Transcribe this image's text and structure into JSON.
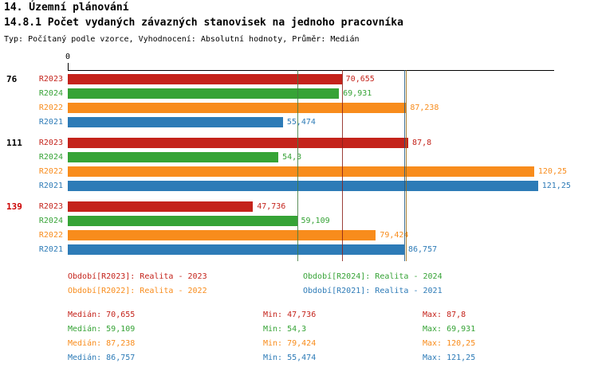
{
  "header": {
    "title": "14. Územní plánování",
    "subtitle": "14.8.1 Počet vydaných závazných stanovisek na jednoho pracovníka",
    "meta": "Typ: Počítaný podle vzorce, Vyhodnocení: Absolutní hodnoty, Průměr: Medián"
  },
  "colors": {
    "r2023": "#c4231b",
    "r2024": "#36a336",
    "r2022": "#f88c1c",
    "r2021": "#2d7bb7",
    "group_flag": "#cc0000",
    "axis": "#000000"
  },
  "chart_data": {
    "type": "bar",
    "orientation": "horizontal",
    "title": "14.8.1 Počet vydaných závazných stanovisek na jednoho pracovníka",
    "xlabel": "",
    "ylabel": "",
    "axis": {
      "min": 0,
      "max": 125,
      "tick_label": "0"
    },
    "series_order": [
      "R2023",
      "R2024",
      "R2022",
      "R2021"
    ],
    "groups": [
      {
        "label": "76",
        "label_color": "#000000",
        "bars": [
          {
            "series": "R2023",
            "value": 70.655,
            "display": "70,655"
          },
          {
            "series": "R2024",
            "value": 69.931,
            "display": "69,931"
          },
          {
            "series": "R2022",
            "value": 87.238,
            "display": "87,238"
          },
          {
            "series": "R2021",
            "value": 55.474,
            "display": "55,474"
          }
        ]
      },
      {
        "label": "111",
        "label_color": "#000000",
        "bars": [
          {
            "series": "R2023",
            "value": 87.8,
            "display": "87,8"
          },
          {
            "series": "R2024",
            "value": 54.3,
            "display": "54,3"
          },
          {
            "series": "R2022",
            "value": 120.25,
            "display": "120,25"
          },
          {
            "series": "R2021",
            "value": 121.25,
            "display": "121,25"
          }
        ]
      },
      {
        "label": "139",
        "label_color": "#cc0000",
        "bars": [
          {
            "series": "R2023",
            "value": 47.736,
            "display": "47,736"
          },
          {
            "series": "R2024",
            "value": 59.109,
            "display": "59,109"
          },
          {
            "series": "R2022",
            "value": 79.424,
            "display": "79,424"
          },
          {
            "series": "R2021",
            "value": 86.757,
            "display": "86,757"
          }
        ]
      }
    ],
    "medians": [
      {
        "series": "R2024",
        "value": 59.109,
        "color": "#3f7d3f"
      },
      {
        "series": "R2023",
        "value": 70.655,
        "color": "#8b1e17"
      },
      {
        "series": "R2021",
        "value": 86.757,
        "color": "#1f5880"
      },
      {
        "series": "R2022",
        "value": 87.238,
        "color": "#9c6b12"
      }
    ]
  },
  "legend": [
    {
      "label": "Období[R2023]: Realita - 2023"
    },
    {
      "label": "Období[R2024]: Realita - 2024"
    },
    {
      "label": "Období[R2022]: Realita - 2022"
    },
    {
      "label": "Období[R2021]: Realita - 2021"
    }
  ],
  "stats": [
    {
      "median": "Medián: 70,655",
      "min": "Min: 47,736",
      "max": "Max: 87,8"
    },
    {
      "median": "Medián: 59,109",
      "min": "Min: 54,3",
      "max": "Max: 69,931"
    },
    {
      "median": "Medián: 87,238",
      "min": "Min: 79,424",
      "max": "Max: 120,25"
    },
    {
      "median": "Medián: 86,757",
      "min": "Min: 55,474",
      "max": "Max: 121,25"
    }
  ]
}
